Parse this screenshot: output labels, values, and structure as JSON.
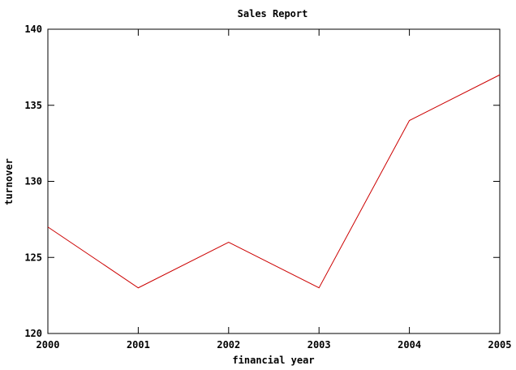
{
  "chart_data": {
    "type": "line",
    "title": "Sales Report",
    "xlabel": "financial year",
    "ylabel": "turnover",
    "x": [
      2000,
      2001,
      2002,
      2003,
      2004,
      2005
    ],
    "xticks": [
      "2000",
      "2001",
      "2002",
      "2003",
      "2004",
      "2005"
    ],
    "yticks": [
      "120",
      "125",
      "130",
      "135",
      "140"
    ],
    "ylim": [
      120,
      140
    ],
    "xlim": [
      2000,
      2005
    ],
    "grid": false,
    "series": [
      {
        "values": [
          127,
          123,
          126,
          123,
          134,
          137
        ],
        "color": "#cc0000"
      }
    ]
  }
}
